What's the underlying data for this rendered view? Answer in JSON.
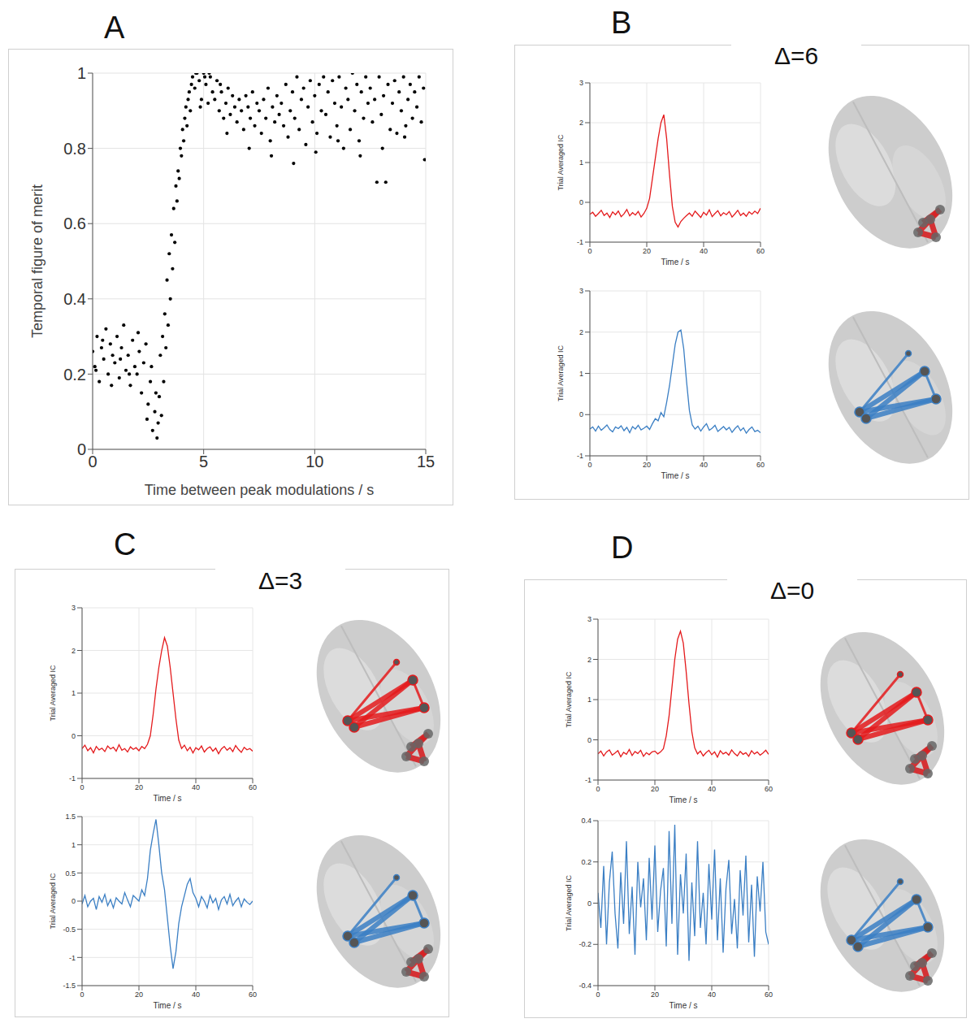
{
  "chart_data": [
    {
      "panel": "A",
      "type": "scatter",
      "x_label": "Time between peak modulations / s",
      "y_label": "Temporal figure of merit",
      "xlim": [
        0,
        15
      ],
      "xticks": [
        0,
        5,
        10,
        15
      ],
      "ylim": [
        0,
        1
      ],
      "yticks": [
        0,
        0.2,
        0.4,
        0.6,
        0.8,
        1
      ],
      "grid": true,
      "color": "#000000",
      "marker": "circle",
      "x": [
        0.0,
        0.1,
        0.2,
        0.3,
        0.4,
        0.5,
        0.6,
        0.7,
        0.8,
        0.9,
        1.0,
        1.1,
        1.2,
        1.3,
        1.4,
        1.5,
        1.6,
        1.7,
        1.8,
        1.9,
        2.0,
        2.1,
        2.2,
        2.3,
        2.4,
        2.5,
        2.6,
        2.7,
        2.8,
        2.9,
        0.15,
        0.45,
        0.85,
        1.25,
        1.65,
        2.05,
        2.45,
        2.65,
        2.85,
        2.95,
        3.0,
        3.05,
        3.1,
        3.15,
        3.2,
        3.25,
        3.3,
        3.35,
        3.4,
        3.45,
        3.5,
        3.55,
        3.6,
        3.65,
        3.7,
        3.75,
        3.8,
        3.85,
        3.9,
        3.95,
        4.0,
        4.05,
        4.1,
        4.15,
        4.2,
        4.25,
        4.3,
        4.35,
        4.4,
        4.45,
        4.5,
        4.6,
        4.7,
        4.8,
        4.9,
        5.0,
        5.1,
        5.2,
        5.3,
        5.4,
        5.5,
        5.6,
        5.7,
        5.8,
        5.9,
        6.0,
        6.1,
        6.2,
        6.3,
        6.4,
        6.5,
        6.6,
        6.7,
        6.8,
        6.9,
        7.0,
        7.1,
        7.2,
        7.3,
        7.4,
        7.5,
        7.6,
        7.7,
        7.8,
        7.9,
        8.0,
        8.1,
        8.2,
        8.3,
        8.4,
        8.5,
        8.6,
        8.7,
        8.8,
        8.9,
        9.0,
        9.1,
        9.2,
        9.3,
        9.4,
        9.5,
        9.6,
        9.7,
        9.8,
        9.9,
        10.0,
        10.1,
        10.2,
        10.3,
        10.4,
        10.5,
        10.6,
        10.7,
        10.8,
        10.9,
        11.0,
        11.1,
        11.2,
        11.3,
        11.4,
        11.5,
        11.6,
        11.7,
        11.8,
        11.9,
        12.0,
        12.1,
        12.2,
        12.3,
        12.4,
        12.5,
        12.6,
        12.7,
        12.8,
        12.9,
        13.0,
        13.1,
        13.2,
        13.3,
        13.4,
        13.5,
        13.6,
        13.7,
        13.8,
        13.9,
        14.0,
        14.1,
        14.2,
        14.3,
        14.4,
        14.5,
        14.6,
        14.7,
        14.8,
        14.9,
        14.95,
        5.05,
        6.05,
        7.05,
        8.05,
        9.05,
        10.05,
        11.05,
        12.05,
        13.05,
        14.05,
        5.25,
        5.75,
        4.85,
        4.65
      ],
      "values": [
        0.26,
        0.22,
        0.3,
        0.18,
        0.27,
        0.24,
        0.32,
        0.2,
        0.28,
        0.25,
        0.23,
        0.3,
        0.19,
        0.27,
        0.33,
        0.21,
        0.25,
        0.17,
        0.29,
        0.22,
        0.2,
        0.26,
        0.15,
        0.23,
        0.28,
        0.12,
        0.18,
        0.05,
        0.1,
        0.03,
        0.21,
        0.29,
        0.17,
        0.24,
        0.2,
        0.31,
        0.08,
        0.22,
        0.15,
        0.07,
        0.14,
        0.25,
        0.09,
        0.3,
        0.18,
        0.36,
        0.27,
        0.45,
        0.33,
        0.52,
        0.4,
        0.57,
        0.48,
        0.64,
        0.55,
        0.7,
        0.66,
        0.74,
        0.72,
        0.8,
        0.78,
        0.85,
        0.82,
        0.88,
        0.91,
        0.86,
        0.93,
        0.95,
        0.9,
        0.97,
        0.99,
        0.96,
        1.0,
        0.98,
        0.93,
        1.0,
        0.97,
        0.92,
        0.99,
        0.95,
        0.93,
        0.98,
        0.9,
        0.95,
        0.88,
        0.92,
        0.96,
        0.89,
        0.94,
        0.91,
        0.87,
        0.93,
        0.9,
        0.85,
        0.94,
        0.91,
        0.88,
        0.95,
        0.86,
        0.92,
        0.9,
        0.84,
        0.93,
        0.88,
        0.96,
        0.82,
        0.91,
        0.87,
        0.94,
        0.89,
        0.92,
        0.86,
        0.97,
        0.83,
        0.9,
        0.95,
        0.88,
        0.99,
        0.85,
        0.93,
        0.96,
        0.81,
        0.91,
        0.98,
        0.87,
        0.94,
        0.84,
        0.97,
        0.9,
        0.99,
        0.89,
        0.95,
        0.83,
        0.98,
        0.92,
        0.86,
        0.99,
        0.91,
        0.8,
        0.96,
        0.93,
        0.85,
        1.0,
        0.9,
        0.97,
        0.82,
        0.95,
        0.88,
        0.99,
        0.92,
        0.96,
        0.87,
        0.93,
        0.71,
        0.99,
        0.89,
        0.94,
        0.71,
        0.97,
        0.85,
        0.92,
        0.98,
        0.84,
        0.95,
        0.9,
        0.99,
        0.86,
        0.93,
        0.97,
        0.88,
        0.95,
        0.91,
        0.99,
        0.87,
        0.96,
        0.77,
        0.99,
        0.84,
        0.8,
        0.78,
        0.76,
        0.79,
        0.82,
        0.78,
        0.8,
        0.83,
        1.0,
        0.97,
        0.91,
        1.0
      ]
    },
    {
      "panel": "B",
      "title": "Δ=6",
      "type": "line",
      "x_label": "Time / s",
      "y_label": "Trial Averaged IC",
      "xlim": [
        0,
        60
      ],
      "xticks": [
        0,
        20,
        40,
        60
      ],
      "ylim": [
        -1,
        3
      ],
      "yticks": [
        -1,
        0,
        1,
        2,
        3
      ],
      "grid": true,
      "color": "#e41a1c",
      "x": [
        0,
        1,
        2,
        3,
        4,
        5,
        6,
        7,
        8,
        9,
        10,
        11,
        12,
        13,
        14,
        15,
        16,
        17,
        18,
        19,
        20,
        21,
        22,
        23,
        24,
        25,
        26,
        27,
        28,
        29,
        30,
        31,
        32,
        33,
        34,
        35,
        36,
        37,
        38,
        39,
        40,
        41,
        42,
        43,
        44,
        45,
        46,
        47,
        48,
        49,
        50,
        51,
        52,
        53,
        54,
        55,
        56,
        57,
        58,
        59,
        60
      ],
      "values": [
        -0.3,
        -0.25,
        -0.35,
        -0.28,
        -0.2,
        -0.33,
        -0.27,
        -0.38,
        -0.24,
        -0.31,
        -0.22,
        -0.36,
        -0.29,
        -0.18,
        -0.34,
        -0.26,
        -0.32,
        -0.23,
        -0.37,
        -0.28,
        -0.15,
        0.1,
        0.6,
        1.1,
        1.6,
        2.0,
        2.2,
        1.6,
        0.7,
        -0.1,
        -0.5,
        -0.62,
        -0.48,
        -0.4,
        -0.33,
        -0.27,
        -0.35,
        -0.22,
        -0.3,
        -0.38,
        -0.25,
        -0.32,
        -0.19,
        -0.36,
        -0.28,
        -0.21,
        -0.34,
        -0.26,
        -0.31,
        -0.23,
        -0.37,
        -0.29,
        -0.2,
        -0.33,
        -0.27,
        -0.35,
        -0.24,
        -0.3,
        -0.22,
        -0.28,
        -0.15
      ]
    },
    {
      "type": "line",
      "x_label": "Time / s",
      "y_label": "Trial Averaged IC",
      "xlim": [
        0,
        60
      ],
      "xticks": [
        0,
        20,
        40,
        60
      ],
      "ylim": [
        -1,
        3
      ],
      "yticks": [
        -1,
        0,
        1,
        2,
        3
      ],
      "grid": true,
      "color": "#3b7fc4",
      "x": [
        0,
        1,
        2,
        3,
        4,
        5,
        6,
        7,
        8,
        9,
        10,
        11,
        12,
        13,
        14,
        15,
        16,
        17,
        18,
        19,
        20,
        21,
        22,
        23,
        24,
        25,
        26,
        27,
        28,
        29,
        30,
        31,
        32,
        33,
        34,
        35,
        36,
        37,
        38,
        39,
        40,
        41,
        42,
        43,
        44,
        45,
        46,
        47,
        48,
        49,
        50,
        51,
        52,
        53,
        54,
        55,
        56,
        57,
        58,
        59,
        60
      ],
      "values": [
        -0.35,
        -0.3,
        -0.4,
        -0.28,
        -0.38,
        -0.32,
        -0.25,
        -0.36,
        -0.42,
        -0.3,
        -0.34,
        -0.27,
        -0.39,
        -0.31,
        -0.44,
        -0.29,
        -0.35,
        -0.26,
        -0.37,
        -0.33,
        -0.28,
        -0.36,
        -0.22,
        -0.1,
        -0.15,
        0.05,
        -0.05,
        0.3,
        0.7,
        1.2,
        1.7,
        2.0,
        2.05,
        1.6,
        0.8,
        0.1,
        -0.25,
        -0.35,
        -0.28,
        -0.4,
        -0.3,
        -0.22,
        -0.38,
        -0.33,
        -0.26,
        -0.41,
        -0.35,
        -0.29,
        -0.37,
        -0.31,
        -0.43,
        -0.34,
        -0.27,
        -0.39,
        -0.32,
        -0.45,
        -0.36,
        -0.3,
        -0.41,
        -0.38,
        -0.44
      ]
    },
    {
      "panel": "C",
      "title": "Δ=3",
      "type": "line",
      "x_label": "Time / s",
      "y_label": "Trial Averaged IC",
      "xlim": [
        0,
        60
      ],
      "xticks": [
        0,
        20,
        40,
        60
      ],
      "ylim": [
        -1,
        3
      ],
      "yticks": [
        -1,
        0,
        1,
        2,
        3
      ],
      "grid": true,
      "color": "#e41a1c",
      "x": [
        0,
        1,
        2,
        3,
        4,
        5,
        6,
        7,
        8,
        9,
        10,
        11,
        12,
        13,
        14,
        15,
        16,
        17,
        18,
        19,
        20,
        21,
        22,
        23,
        24,
        25,
        26,
        27,
        28,
        29,
        30,
        31,
        32,
        33,
        34,
        35,
        36,
        37,
        38,
        39,
        40,
        41,
        42,
        43,
        44,
        45,
        46,
        47,
        48,
        49,
        50,
        51,
        52,
        53,
        54,
        55,
        56,
        57,
        58,
        59,
        60
      ],
      "values": [
        -0.3,
        -0.22,
        -0.35,
        -0.28,
        -0.4,
        -0.25,
        -0.33,
        -0.29,
        -0.37,
        -0.24,
        -0.31,
        -0.27,
        -0.36,
        -0.21,
        -0.34,
        -0.3,
        -0.38,
        -0.26,
        -0.32,
        -0.28,
        -0.35,
        -0.25,
        -0.3,
        -0.2,
        0.0,
        0.5,
        1.1,
        1.6,
        2.0,
        2.3,
        2.1,
        1.6,
        1.0,
        0.4,
        -0.1,
        -0.3,
        -0.22,
        -0.35,
        -0.27,
        -0.4,
        -0.28,
        -0.33,
        -0.24,
        -0.38,
        -0.3,
        -0.26,
        -0.36,
        -0.29,
        -0.42,
        -0.31,
        -0.25,
        -0.34,
        -0.28,
        -0.37,
        -0.23,
        -0.32,
        -0.39,
        -0.27,
        -0.33,
        -0.3,
        -0.36
      ]
    },
    {
      "type": "line",
      "x_label": "Time / s",
      "y_label": "Trial Averaged IC",
      "xlim": [
        0,
        60
      ],
      "xticks": [
        0,
        20,
        40,
        60
      ],
      "ylim": [
        -1.5,
        1.5
      ],
      "yticks": [
        -1.5,
        -1,
        -0.5,
        0,
        0.5,
        1,
        1.5
      ],
      "grid": true,
      "color": "#3b7fc4",
      "x": [
        0,
        1,
        2,
        3,
        4,
        5,
        6,
        7,
        8,
        9,
        10,
        11,
        12,
        13,
        14,
        15,
        16,
        17,
        18,
        19,
        20,
        21,
        22,
        23,
        24,
        25,
        26,
        27,
        28,
        29,
        30,
        31,
        32,
        33,
        34,
        35,
        36,
        37,
        38,
        39,
        40,
        41,
        42,
        43,
        44,
        45,
        46,
        47,
        48,
        49,
        50,
        51,
        52,
        53,
        54,
        55,
        56,
        57,
        58,
        59,
        60
      ],
      "values": [
        -0.05,
        0.1,
        -0.1,
        0.0,
        0.05,
        -0.15,
        0.08,
        -0.02,
        0.12,
        -0.08,
        0.03,
        -0.12,
        0.06,
        0.0,
        -0.05,
        0.15,
        0.02,
        -0.1,
        0.1,
        0.05,
        0.0,
        0.2,
        0.1,
        0.4,
        0.9,
        1.2,
        1.45,
        1.0,
        0.5,
        0.2,
        -0.3,
        -0.8,
        -1.2,
        -0.9,
        -0.4,
        -0.1,
        0.1,
        0.3,
        0.4,
        0.15,
        0.05,
        -0.1,
        0.08,
        0.0,
        -0.12,
        0.1,
        -0.03,
        0.05,
        -0.15,
        0.02,
        0.08,
        -0.05,
        0.12,
        -0.08,
        0.0,
        0.06,
        -0.1,
        0.04,
        -0.02,
        -0.06,
        0.0
      ]
    },
    {
      "panel": "D",
      "title": "Δ=0",
      "type": "line",
      "x_label": "Time / s",
      "y_label": "Trial Averaged IC",
      "xlim": [
        0,
        60
      ],
      "xticks": [
        0,
        20,
        40,
        60
      ],
      "ylim": [
        -1,
        3
      ],
      "yticks": [
        -1,
        0,
        1,
        2,
        3
      ],
      "grid": true,
      "color": "#e41a1c",
      "x": [
        0,
        1,
        2,
        3,
        4,
        5,
        6,
        7,
        8,
        9,
        10,
        11,
        12,
        13,
        14,
        15,
        16,
        17,
        18,
        19,
        20,
        21,
        22,
        23,
        24,
        25,
        26,
        27,
        28,
        29,
        30,
        31,
        32,
        33,
        34,
        35,
        36,
        37,
        38,
        39,
        40,
        41,
        42,
        43,
        44,
        45,
        46,
        47,
        48,
        49,
        50,
        51,
        52,
        53,
        54,
        55,
        56,
        57,
        58,
        59,
        60
      ],
      "values": [
        -0.35,
        -0.28,
        -0.4,
        -0.3,
        -0.25,
        -0.38,
        -0.33,
        -0.27,
        -0.42,
        -0.31,
        -0.36,
        -0.24,
        -0.39,
        -0.29,
        -0.34,
        -0.26,
        -0.41,
        -0.32,
        -0.37,
        -0.3,
        -0.28,
        -0.35,
        -0.3,
        -0.22,
        0.1,
        0.6,
        1.3,
        2.0,
        2.5,
        2.7,
        2.4,
        1.7,
        0.9,
        0.2,
        -0.2,
        -0.35,
        -0.28,
        -0.4,
        -0.32,
        -0.26,
        -0.37,
        -0.3,
        -0.43,
        -0.27,
        -0.35,
        -0.31,
        -0.38,
        -0.25,
        -0.34,
        -0.4,
        -0.29,
        -0.36,
        -0.32,
        -0.41,
        -0.27,
        -0.35,
        -0.3,
        -0.38,
        -0.33,
        -0.26,
        -0.36
      ]
    },
    {
      "type": "line",
      "x_label": "Time / s",
      "y_label": "Trial Averaged IC",
      "xlim": [
        0,
        60
      ],
      "xticks": [
        0,
        20,
        40,
        60
      ],
      "ylim": [
        -0.4,
        0.4
      ],
      "yticks": [
        -0.4,
        -0.2,
        0,
        0.2,
        0.4
      ],
      "grid": true,
      "color": "#3b7fc4",
      "x": [
        0,
        1,
        2,
        3,
        4,
        5,
        6,
        7,
        8,
        9,
        10,
        11,
        12,
        13,
        14,
        15,
        16,
        17,
        18,
        19,
        20,
        21,
        22,
        23,
        24,
        25,
        26,
        27,
        28,
        29,
        30,
        31,
        32,
        33,
        34,
        35,
        36,
        37,
        38,
        39,
        40,
        41,
        42,
        43,
        44,
        45,
        46,
        47,
        48,
        49,
        50,
        51,
        52,
        53,
        54,
        55,
        56,
        57,
        58,
        59,
        60
      ],
      "values": [
        0.05,
        -0.12,
        0.18,
        -0.2,
        0.1,
        0.25,
        -0.05,
        -0.22,
        0.15,
        -0.1,
        0.3,
        -0.15,
        0.08,
        -0.25,
        0.2,
        -0.02,
        0.12,
        -0.18,
        0.22,
        -0.08,
        0.28,
        -0.14,
        0.06,
        0.17,
        -0.21,
        0.35,
        -0.1,
        0.38,
        -0.25,
        0.14,
        -0.05,
        0.24,
        -0.28,
        0.1,
        -0.16,
        0.3,
        -0.12,
        0.05,
        -0.2,
        0.19,
        -0.08,
        0.26,
        -0.18,
        0.12,
        -0.24,
        0.07,
        0.21,
        -0.15,
        0.02,
        -0.22,
        0.16,
        -0.06,
        0.23,
        -0.19,
        0.09,
        -0.26,
        0.13,
        -0.04,
        0.2,
        -0.14,
        -0.2
      ]
    }
  ]
}
